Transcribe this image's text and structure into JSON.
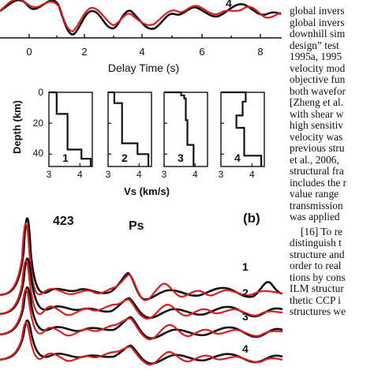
{
  "figure": {
    "top_panel": {
      "trace_label": "4",
      "x_axis_label": "Delay Time (s)",
      "x_ticks": [
        "0",
        "2",
        "4",
        "6",
        "8"
      ]
    },
    "models": {
      "y_axis_label": "Depth (km)",
      "x_axis_label": "Vs (km/s)",
      "y_ticks": [
        "0",
        "20",
        "40"
      ],
      "x_ticks": [
        "3",
        "4"
      ],
      "panels": [
        {
          "label": "1",
          "profile": [
            [
              3.0,
              0
            ],
            [
              3.25,
              0
            ],
            [
              3.25,
              14
            ],
            [
              3.6,
              14
            ],
            [
              3.6,
              37
            ],
            [
              4.05,
              37
            ],
            [
              4.05,
              43
            ],
            [
              4.35,
              43
            ],
            [
              4.35,
              48
            ]
          ]
        },
        {
          "label": "2",
          "profile": [
            [
              3.0,
              0
            ],
            [
              3.2,
              0
            ],
            [
              3.2,
              7
            ],
            [
              3.45,
              7
            ],
            [
              3.45,
              33
            ],
            [
              3.95,
              33
            ],
            [
              3.95,
              40
            ],
            [
              4.3,
              40
            ],
            [
              4.3,
              48
            ]
          ]
        },
        {
          "label": "3",
          "profile": [
            [
              3.0,
              0
            ],
            [
              3.55,
              0
            ],
            [
              3.55,
              2
            ],
            [
              3.65,
              2
            ],
            [
              3.65,
              4
            ],
            [
              3.7,
              4
            ],
            [
              3.7,
              18
            ],
            [
              3.75,
              18
            ],
            [
              3.75,
              34
            ],
            [
              3.95,
              34
            ],
            [
              3.95,
              48
            ]
          ]
        },
        {
          "label": "4",
          "profile": [
            [
              3.0,
              0
            ],
            [
              3.8,
              0
            ],
            [
              3.8,
              6
            ],
            [
              3.7,
              6
            ],
            [
              3.7,
              15
            ],
            [
              3.5,
              15
            ],
            [
              3.5,
              23
            ],
            [
              3.75,
              23
            ],
            [
              3.75,
              41
            ],
            [
              4.3,
              41
            ],
            [
              4.3,
              48
            ]
          ]
        }
      ]
    },
    "bottom_panel": {
      "panel_label": "(b)",
      "station_label": "423",
      "phase_label": "Ps",
      "trace_labels": [
        "1",
        "2",
        "3",
        "4"
      ]
    }
  },
  "text_column": [
    "global invers",
    "global invers",
    "downhill sim",
    "design” test",
    "1995a, 1995",
    "velocity mod",
    "objective fun",
    "both wavefor",
    "[Zheng et al.",
    "with shear w",
    "high sensitiv",
    "velocity was",
    "previous stru",
    "et al., 2006,",
    "structural fra",
    "includes the r",
    "value range",
    "transmission",
    "was applied",
    "[16] To re",
    "distinguish t",
    "structure and",
    "order to real",
    "tions by cons",
    "ILM structur",
    "thetic CCP i",
    "structures we"
  ],
  "colors": {
    "observed": "#d81e1e",
    "synthetic": "#111111",
    "axes": "#111111"
  }
}
